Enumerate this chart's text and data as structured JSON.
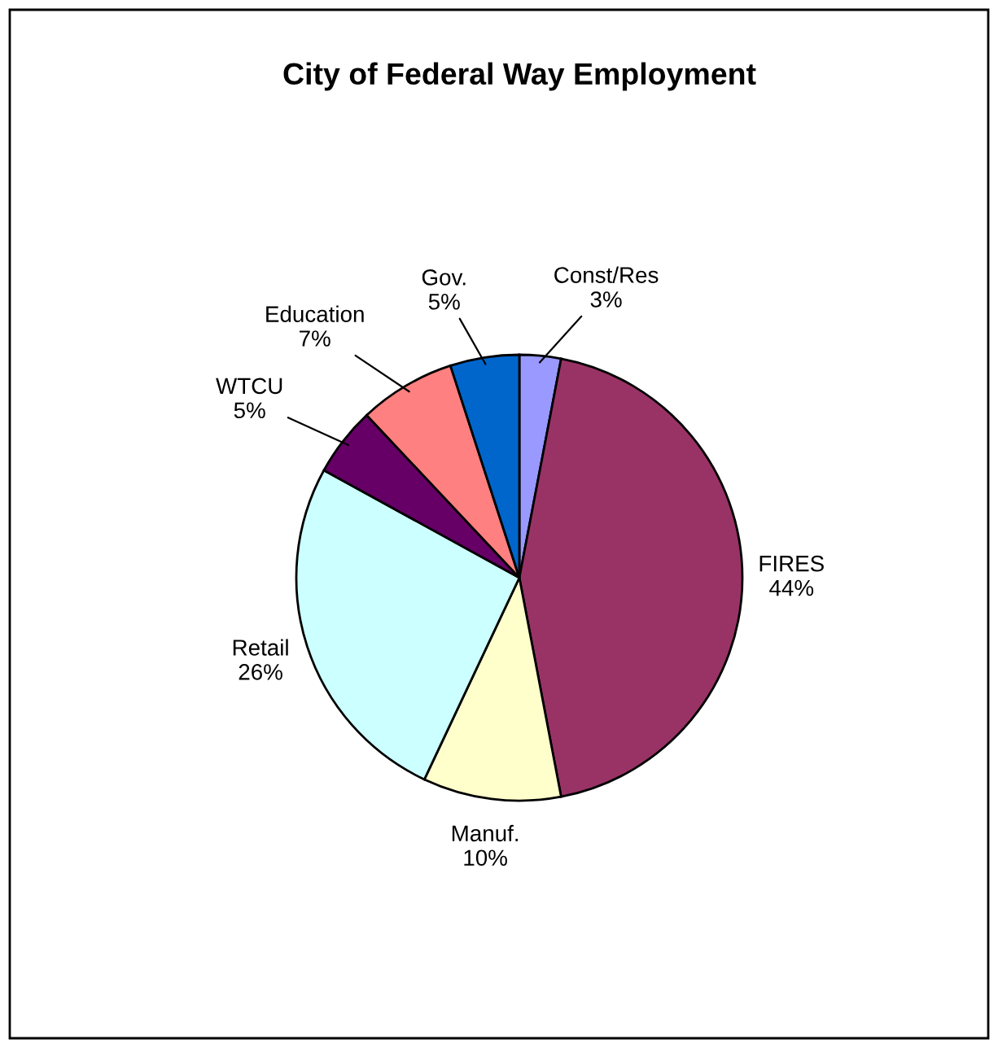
{
  "chart_data": {
    "type": "pie",
    "title": "City of Federal Way Employment",
    "categories": [
      "Const/Res",
      "FIRES",
      "Manuf.",
      "Retail",
      "WTCU",
      "Education",
      "Gov."
    ],
    "values": [
      3,
      44,
      10,
      26,
      5,
      7,
      5
    ],
    "colors": [
      "#9999ff",
      "#993366",
      "#ffffcc",
      "#ccffff",
      "#660066",
      "#ff8080",
      "#0066cc"
    ],
    "value_labels": [
      "3%",
      "44%",
      "10%",
      "26%",
      "5%",
      "7%",
      "5%"
    ]
  }
}
